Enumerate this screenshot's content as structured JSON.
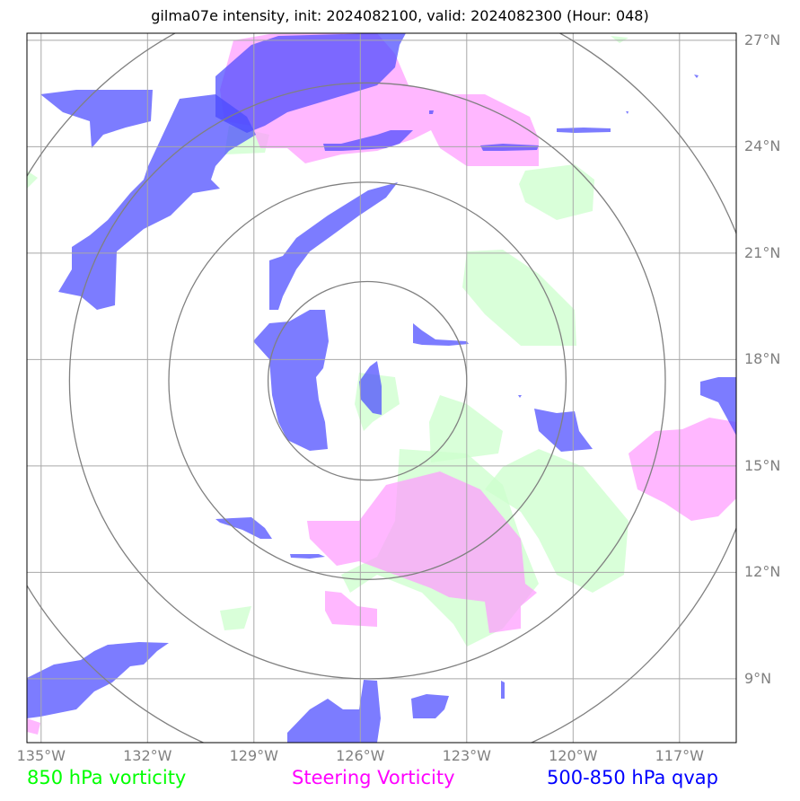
{
  "title": "gilma07e intensity, init: 2024082100, valid: 2024082300 (Hour: 048)",
  "map": {
    "lon_ticks": [
      {
        "lon": -135,
        "label": "135°W"
      },
      {
        "lon": -132,
        "label": "132°W"
      },
      {
        "lon": -129,
        "label": "129°W"
      },
      {
        "lon": -126,
        "label": "126°W"
      },
      {
        "lon": -123,
        "label": "123°W"
      },
      {
        "lon": -120,
        "label": "120°W"
      },
      {
        "lon": -117,
        "label": "117°W"
      }
    ],
    "lat_ticks": [
      {
        "lat": 27,
        "label": "27°N"
      },
      {
        "lat": 24,
        "label": "24°N"
      },
      {
        "lat": 21,
        "label": "21°N"
      },
      {
        "lat": 18,
        "label": "18°N"
      },
      {
        "lat": 15,
        "label": "15°N"
      },
      {
        "lat": 12,
        "label": "12°N"
      },
      {
        "lat": 9,
        "label": "9°N"
      }
    ],
    "lon_range": [
      -135.4,
      -115.4
    ],
    "lat_range": [
      7.2,
      27.2
    ],
    "grid": true,
    "range_rings": {
      "center": {
        "lon": -125.8,
        "lat": 17.4
      },
      "radii_deg": [
        2.8,
        5.6,
        8.4,
        11.2
      ]
    }
  },
  "legend": {
    "vort850": {
      "label": "850 hPa vorticity",
      "color": "#00ff00"
    },
    "steering": {
      "label": "Steering Vorticity",
      "color": "#ff00ff"
    },
    "qvap": {
      "label": "500-850 hPa qvap",
      "color": "#0000ff"
    }
  },
  "fill_colors": {
    "green": "#ccffcc",
    "magenta": "#ff99ff",
    "blue": "#4a4aff"
  }
}
